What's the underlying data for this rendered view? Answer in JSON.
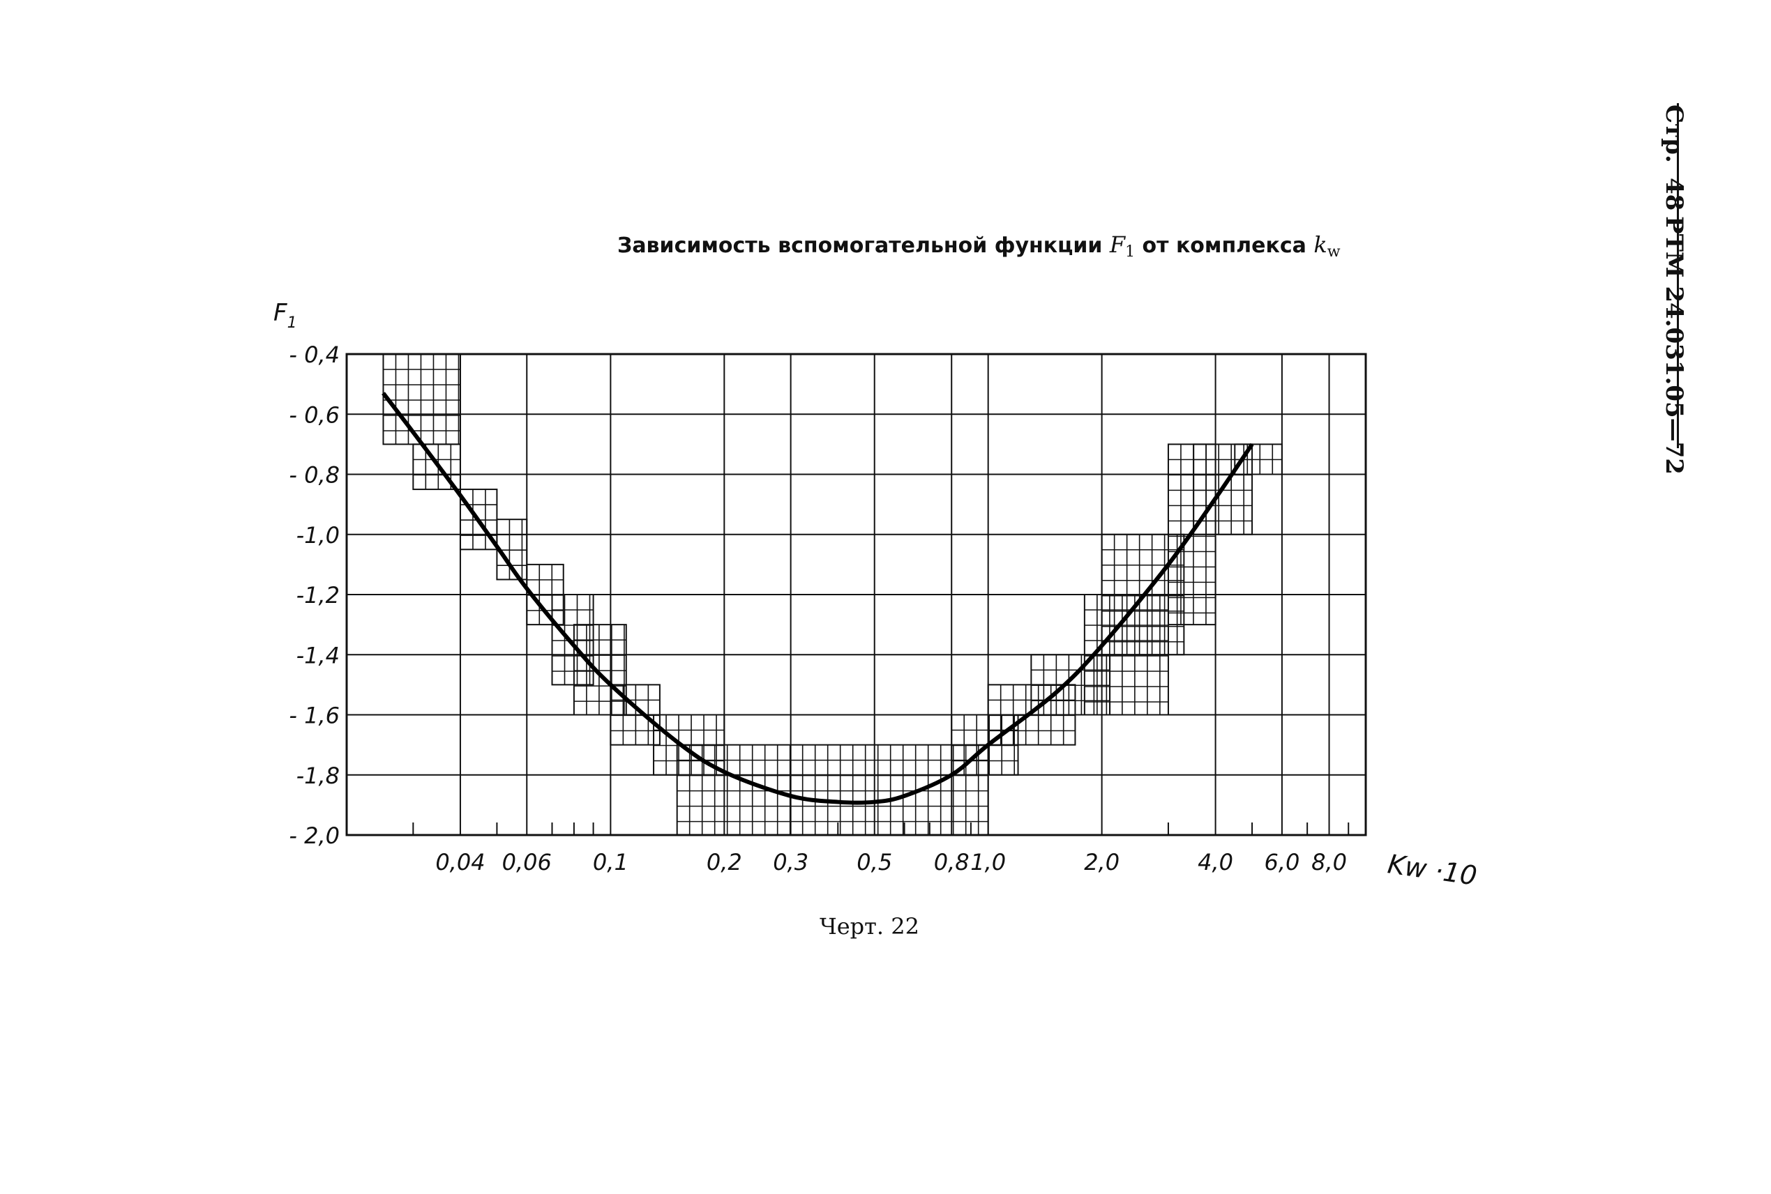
{
  "header": {
    "page_label": "Стр.",
    "page_number": "48",
    "document_code": "РТМ 24.031.05—72"
  },
  "title": {
    "prefix": "Зависимость вспомогательной функции ",
    "function_symbol": "F",
    "function_subscript": "1",
    "middle": " от комплекса ",
    "argument_symbol": "k",
    "argument_subscript": "w"
  },
  "caption": "Черт. 22",
  "chart_data": {
    "type": "line",
    "title": "Зависимость вспомогательной функции F1 от комплекса kw",
    "xlabel": "Kw ·10",
    "ylabel": "F1",
    "x_scale": "log",
    "xlim": [
      0.02,
      10
    ],
    "ylim": [
      -2.0,
      -0.4
    ],
    "grid": true,
    "x_ticks": [
      {
        "value": 0.04,
        "label": "0,04"
      },
      {
        "value": 0.06,
        "label": "0,06"
      },
      {
        "value": 0.1,
        "label": "0,1"
      },
      {
        "value": 0.2,
        "label": "0,2"
      },
      {
        "value": 0.3,
        "label": "0,3"
      },
      {
        "value": 0.5,
        "label": "0,5"
      },
      {
        "value": 0.8,
        "label": "0,8"
      },
      {
        "value": 1.0,
        "label": "1,0"
      },
      {
        "value": 2.0,
        "label": "2,0"
      },
      {
        "value": 4.0,
        "label": "4,0"
      },
      {
        "value": 6.0,
        "label": "6,0"
      },
      {
        "value": 8.0,
        "label": "8,0"
      }
    ],
    "y_ticks": [
      {
        "value": -0.4,
        "label": "- 0,4"
      },
      {
        "value": -0.6,
        "label": "- 0,6"
      },
      {
        "value": -0.8,
        "label": "- 0,8"
      },
      {
        "value": -1.0,
        "label": "-1,0"
      },
      {
        "value": -1.2,
        "label": "-1,2"
      },
      {
        "value": -1.4,
        "label": "-1,4"
      },
      {
        "value": -1.6,
        "label": "- 1,6"
      },
      {
        "value": -1.8,
        "label": "-1,8"
      },
      {
        "value": -2.0,
        "label": "- 2,0"
      }
    ],
    "series": [
      {
        "x": [
          0.025,
          0.03,
          0.04,
          0.05,
          0.06,
          0.08,
          0.1,
          0.15,
          0.2,
          0.3,
          0.4,
          0.5,
          0.6,
          0.8,
          1.0,
          1.5,
          2.0,
          3.0,
          4.0,
          5.0
        ],
        "y": [
          -0.53,
          -0.66,
          -0.87,
          -1.04,
          -1.18,
          -1.37,
          -1.5,
          -1.69,
          -1.79,
          -1.87,
          -1.89,
          -1.89,
          -1.87,
          -1.8,
          -1.7,
          -1.53,
          -1.37,
          -1.1,
          -0.88,
          -0.7
        ]
      }
    ],
    "nomogram_scale_bands": [
      {
        "x_from": 0.025,
        "x_to": 0.04,
        "y_from": -0.7,
        "y_to": -0.4
      },
      {
        "x_from": 0.03,
        "x_to": 0.04,
        "y_from": -0.85,
        "y_to": -0.7
      },
      {
        "x_from": 0.04,
        "x_to": 0.05,
        "y_from": -1.05,
        "y_to": -0.85
      },
      {
        "x_from": 0.05,
        "x_to": 0.06,
        "y_from": -1.15,
        "y_to": -0.95
      },
      {
        "x_from": 0.06,
        "x_to": 0.075,
        "y_from": -1.3,
        "y_to": -1.1
      },
      {
        "x_from": 0.07,
        "x_to": 0.09,
        "y_from": -1.5,
        "y_to": -1.2
      },
      {
        "x_from": 0.08,
        "x_to": 0.11,
        "y_from": -1.6,
        "y_to": -1.3
      },
      {
        "x_from": 0.1,
        "x_to": 0.135,
        "y_from": -1.7,
        "y_to": -1.5
      },
      {
        "x_from": 0.13,
        "x_to": 0.2,
        "y_from": -1.8,
        "y_to": -1.6
      },
      {
        "x_from": 0.15,
        "x_to": 1.0,
        "y_from": -2.0,
        "y_to": -1.7
      },
      {
        "x_from": 0.8,
        "x_to": 1.2,
        "y_from": -1.8,
        "y_to": -1.6
      },
      {
        "x_from": 1.0,
        "x_to": 1.7,
        "y_from": -1.7,
        "y_to": -1.5
      },
      {
        "x_from": 1.3,
        "x_to": 2.1,
        "y_from": -1.6,
        "y_to": -1.4
      },
      {
        "x_from": 1.8,
        "x_to": 3.0,
        "y_from": -1.6,
        "y_to": -1.2
      },
      {
        "x_from": 2.0,
        "x_to": 3.3,
        "y_from": -1.4,
        "y_to": -1.0
      },
      {
        "x_from": 3.0,
        "x_to": 4.0,
        "y_from": -1.3,
        "y_to": -0.7
      },
      {
        "x_from": 3.5,
        "x_to": 5.0,
        "y_from": -1.0,
        "y_to": -0.7
      },
      {
        "x_from": 4.5,
        "x_to": 6.0,
        "y_from": -0.8,
        "y_to": -0.7
      }
    ]
  }
}
